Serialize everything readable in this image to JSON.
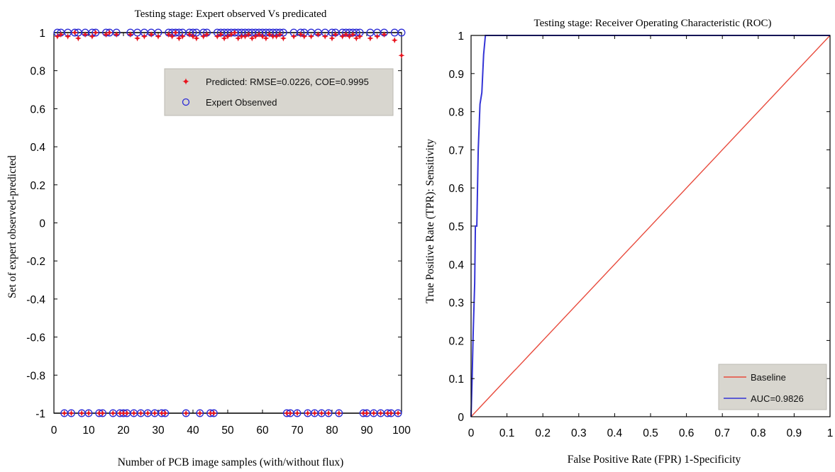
{
  "chart_data": [
    {
      "type": "scatter",
      "title": "Testing stage: Expert observed Vs predicated",
      "xlabel": "Number of PCB image samples  (with/without flux)",
      "ylabel": "Set of expert observed-predicted",
      "xlim": [
        0,
        100
      ],
      "ylim": [
        -1,
        1
      ],
      "xticks": [
        "0",
        "10",
        "20",
        "30",
        "40",
        "50",
        "60",
        "70",
        "80",
        "90",
        "100"
      ],
      "yticks": [
        "1",
        "0.8",
        "0.6",
        "0.4",
        "0.2",
        "0",
        "-0.2",
        "-0.4",
        "-0.6",
        "-0.8",
        "-1"
      ],
      "legend_position": "top-right",
      "grid": false,
      "series": [
        {
          "name": "Predicted: RMSE=0.0226, COE=0.9995",
          "marker": "star",
          "color": "#e8141e",
          "x": [
            1,
            2,
            3,
            4,
            5,
            6,
            7,
            8,
            9,
            10,
            11,
            12,
            13,
            14,
            15,
            16,
            17,
            18,
            19,
            20,
            21,
            22,
            23,
            24,
            25,
            26,
            27,
            28,
            29,
            30,
            31,
            32,
            33,
            34,
            35,
            36,
            37,
            38,
            39,
            40,
            41,
            42,
            43,
            44,
            45,
            46,
            47,
            48,
            49,
            50,
            51,
            52,
            53,
            54,
            55,
            56,
            57,
            58,
            59,
            60,
            61,
            62,
            63,
            64,
            65,
            66,
            67,
            68,
            69,
            70,
            71,
            72,
            73,
            74,
            75,
            76,
            77,
            78,
            79,
            80,
            81,
            82,
            83,
            84,
            85,
            86,
            87,
            88,
            89,
            90,
            91,
            92,
            93,
            94,
            95,
            96,
            97,
            98,
            99,
            100
          ],
          "y": [
            0.98,
            0.99,
            -1,
            0.98,
            -1,
            1,
            0.97,
            -1,
            0.99,
            -1,
            0.98,
            1,
            -1,
            -1,
            0.99,
            1,
            -1,
            0.99,
            -1,
            -1,
            -1,
            0.99,
            -1,
            0.97,
            -1,
            0.98,
            -1,
            0.99,
            -1,
            0.98,
            -1,
            -1,
            0.99,
            0.98,
            1,
            0.97,
            0.98,
            -1,
            0.99,
            0.98,
            0.97,
            -1,
            0.98,
            0.99,
            -1,
            -1,
            0.98,
            0.99,
            0.97,
            0.98,
            0.99,
            1,
            0.97,
            0.98,
            0.98,
            0.99,
            0.97,
            0.98,
            0.99,
            0.98,
            0.97,
            0.99,
            0.98,
            0.98,
            0.99,
            0.97,
            -1,
            -1,
            0.98,
            -1,
            0.99,
            0.98,
            -1,
            0.98,
            -1,
            0.99,
            -1,
            0.98,
            -1,
            0.97,
            0.99,
            -1,
            0.98,
            0.99,
            0.98,
            0.99,
            0.97,
            0.98,
            -1,
            -1,
            0.97,
            -1,
            0.98,
            -1,
            0.99,
            -1,
            -1,
            0.96,
            -1,
            0.88
          ]
        },
        {
          "name": "Expert Obsenved",
          "marker": "circle",
          "color": "#2b2bd6",
          "x": [
            1,
            2,
            3,
            4,
            5,
            6,
            7,
            8,
            9,
            10,
            11,
            12,
            13,
            14,
            15,
            16,
            17,
            18,
            19,
            20,
            21,
            22,
            23,
            24,
            25,
            26,
            27,
            28,
            29,
            30,
            31,
            32,
            33,
            34,
            35,
            36,
            37,
            38,
            39,
            40,
            41,
            42,
            43,
            44,
            45,
            46,
            47,
            48,
            49,
            50,
            51,
            52,
            53,
            54,
            55,
            56,
            57,
            58,
            59,
            60,
            61,
            62,
            63,
            64,
            65,
            66,
            67,
            68,
            69,
            70,
            71,
            72,
            73,
            74,
            75,
            76,
            77,
            78,
            79,
            80,
            81,
            82,
            83,
            84,
            85,
            86,
            87,
            88,
            89,
            90,
            91,
            92,
            93,
            94,
            95,
            96,
            97,
            98,
            99,
            100
          ],
          "y": [
            1,
            1,
            -1,
            1,
            -1,
            1,
            1,
            -1,
            1,
            -1,
            1,
            1,
            -1,
            -1,
            1,
            1,
            -1,
            1,
            -1,
            -1,
            -1,
            1,
            -1,
            1,
            -1,
            1,
            -1,
            1,
            -1,
            1,
            -1,
            -1,
            1,
            1,
            1,
            1,
            1,
            -1,
            1,
            1,
            1,
            -1,
            1,
            1,
            -1,
            -1,
            1,
            1,
            1,
            1,
            1,
            1,
            1,
            1,
            1,
            1,
            1,
            1,
            1,
            1,
            1,
            1,
            1,
            1,
            1,
            1,
            -1,
            -1,
            1,
            -1,
            1,
            1,
            -1,
            1,
            -1,
            1,
            -1,
            1,
            -1,
            1,
            1,
            -1,
            1,
            1,
            1,
            1,
            1,
            1,
            -1,
            -1,
            1,
            -1,
            1,
            -1,
            1,
            -1,
            -1,
            1,
            -1,
            1
          ]
        }
      ]
    },
    {
      "type": "line",
      "title": "Testing stage: Receiver Operating Characteristic (ROC)",
      "xlabel": "False Positive Rate (FPR) 1-Specificity",
      "ylabel": "True Positive  Rate (TPR): Sensitivity",
      "xlim": [
        0,
        1
      ],
      "ylim": [
        0,
        1
      ],
      "xticks": [
        "0",
        "0.1",
        "0.2",
        "0.3",
        "0.4",
        "0.5",
        "0.6",
        "0.7",
        "0.8",
        "0.9",
        "1"
      ],
      "yticks": [
        "0",
        "0.1",
        "0.2",
        "0.3",
        "0.4",
        "0.5",
        "0.6",
        "0.7",
        "0.8",
        "0.9",
        "1"
      ],
      "legend_position": "bottom-right",
      "grid": false,
      "series": [
        {
          "name": "Baseline",
          "color": "#e84a3c",
          "x": [
            0,
            0.12,
            0.125,
            1
          ],
          "y": [
            0,
            0.12,
            0.125,
            1
          ]
        },
        {
          "name": "AUC=0.9826",
          "color": "#3434d6",
          "x": [
            0,
            0.003,
            0.006,
            0.01,
            0.012,
            0.016,
            0.02,
            0.025,
            0.03,
            0.035,
            0.04,
            0.04,
            1
          ],
          "y": [
            0,
            0.1,
            0.22,
            0.35,
            0.5,
            0.5,
            0.7,
            0.82,
            0.85,
            0.95,
            1,
            1,
            1
          ]
        }
      ]
    }
  ]
}
